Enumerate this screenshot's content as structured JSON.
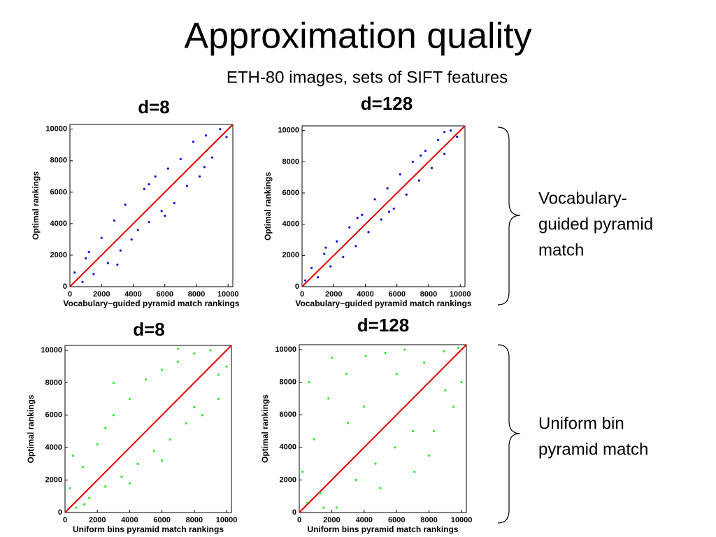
{
  "title": "Approximation quality",
  "subtitle": "ETH-80 images, sets of SIFT features",
  "side_labels": [
    [
      "Vocabulary-",
      "guided pyramid",
      "match"
    ],
    [
      "Uniform bin",
      "pyramid match"
    ]
  ],
  "chart_data": [
    {
      "type": "scatter",
      "title": "d=8",
      "xlabel": "Vocabulary−guided pyramid match rankings",
      "ylabel": "Optimal rankings",
      "color": "#1010d0",
      "line_color": "#e00000",
      "xlim": [
        0,
        10300
      ],
      "ylim": [
        0,
        10300
      ],
      "xticks": [
        0,
        2000,
        4000,
        6000,
        8000,
        10000
      ],
      "yticks": [
        0,
        2000,
        4000,
        6000,
        8000,
        10000
      ],
      "x": [
        300,
        800,
        1200,
        1500,
        2000,
        2400,
        2800,
        3200,
        3500,
        3900,
        4300,
        4700,
        5000,
        5400,
        5800,
        6200,
        6600,
        7000,
        7400,
        7800,
        8200,
        8600,
        9000,
        9500,
        9900,
        1000,
        3000,
        6000,
        8500,
        5000
      ],
      "values": [
        900,
        300,
        2200,
        800,
        3100,
        1500,
        4200,
        2300,
        5200,
        3000,
        3600,
        6200,
        4100,
        7000,
        4800,
        7500,
        5300,
        8100,
        6400,
        9200,
        7000,
        9600,
        8200,
        10000,
        9500,
        1800,
        1400,
        4500,
        7600,
        6500
      ]
    },
    {
      "type": "scatter",
      "title": "d=128",
      "xlabel": "Vocabulary−guided pyramid match rankings",
      "ylabel": "Optimal rankings",
      "color": "#1010d0",
      "line_color": "#e00000",
      "xlim": [
        0,
        10300
      ],
      "ylim": [
        0,
        10300
      ],
      "xticks": [
        0,
        2000,
        4000,
        6000,
        8000,
        10000
      ],
      "yticks": [
        0,
        2000,
        4000,
        6000,
        8000,
        10000
      ],
      "x": [
        200,
        600,
        1000,
        1400,
        1800,
        2200,
        2600,
        3000,
        3400,
        3800,
        4200,
        4600,
        5000,
        5400,
        5800,
        6200,
        6600,
        7000,
        7400,
        7800,
        8200,
        8600,
        9000,
        9400,
        9800,
        1500,
        3500,
        5500,
        7500,
        9000
      ],
      "values": [
        400,
        1200,
        600,
        2100,
        1300,
        2900,
        1900,
        3800,
        2600,
        4600,
        3500,
        5600,
        4300,
        6300,
        5000,
        7200,
        5900,
        8000,
        6800,
        8700,
        7600,
        9400,
        8500,
        10000,
        9600,
        2500,
        4400,
        4800,
        8400,
        9900
      ]
    },
    {
      "type": "scatter",
      "title": "d=8",
      "xlabel": "Uniform bins pyramid match rankings",
      "ylabel": "Optimal rankings",
      "color": "#30e830",
      "line_color": "#e00000",
      "xlim": [
        0,
        10300
      ],
      "ylim": [
        0,
        10300
      ],
      "xticks": [
        0,
        2000,
        4000,
        6000,
        8000,
        10000
      ],
      "yticks": [
        0,
        2000,
        4000,
        6000,
        8000,
        10000
      ],
      "x": [
        300,
        700,
        1100,
        1500,
        2000,
        2500,
        3000,
        3500,
        4000,
        4500,
        5000,
        5500,
        6000,
        6500,
        7000,
        7500,
        8000,
        8500,
        9000,
        9500,
        10000,
        500,
        2500,
        4000,
        6000,
        8000,
        9500,
        1200,
        3000,
        7000
      ],
      "values": [
        1500,
        300,
        2800,
        900,
        4200,
        1600,
        6000,
        2200,
        7000,
        3000,
        8200,
        3800,
        8800,
        4500,
        9300,
        5500,
        9800,
        6000,
        10000,
        7000,
        9000,
        3500,
        5200,
        1800,
        3200,
        6500,
        8500,
        500,
        8000,
        10100
      ]
    },
    {
      "type": "scatter",
      "title": "d=128",
      "xlabel": "Uniform bins pyramid match rankings",
      "ylabel": "Optimal rankings",
      "color": "#30e830",
      "line_color": "#e00000",
      "xlim": [
        0,
        10300
      ],
      "ylim": [
        0,
        10300
      ],
      "xticks": [
        0,
        2000,
        4000,
        6000,
        8000,
        10000
      ],
      "yticks": [
        0,
        2000,
        4000,
        6000,
        8000,
        10000
      ],
      "x": [
        200,
        500,
        900,
        1300,
        1800,
        2300,
        2900,
        3500,
        4100,
        4700,
        5300,
        5900,
        6500,
        7100,
        7700,
        8300,
        8900,
        9500,
        10000,
        600,
        1500,
        3000,
        5000,
        7000,
        9000,
        2000,
        4000,
        6000,
        8000,
        9800
      ],
      "values": [
        2500,
        600,
        4500,
        1200,
        7000,
        300,
        8500,
        2000,
        9600,
        3000,
        9800,
        4000,
        10000,
        2500,
        9200,
        5000,
        9900,
        6500,
        8000,
        8000,
        300,
        5500,
        1500,
        5000,
        7500,
        9500,
        6500,
        8500,
        3500,
        10100
      ]
    }
  ]
}
